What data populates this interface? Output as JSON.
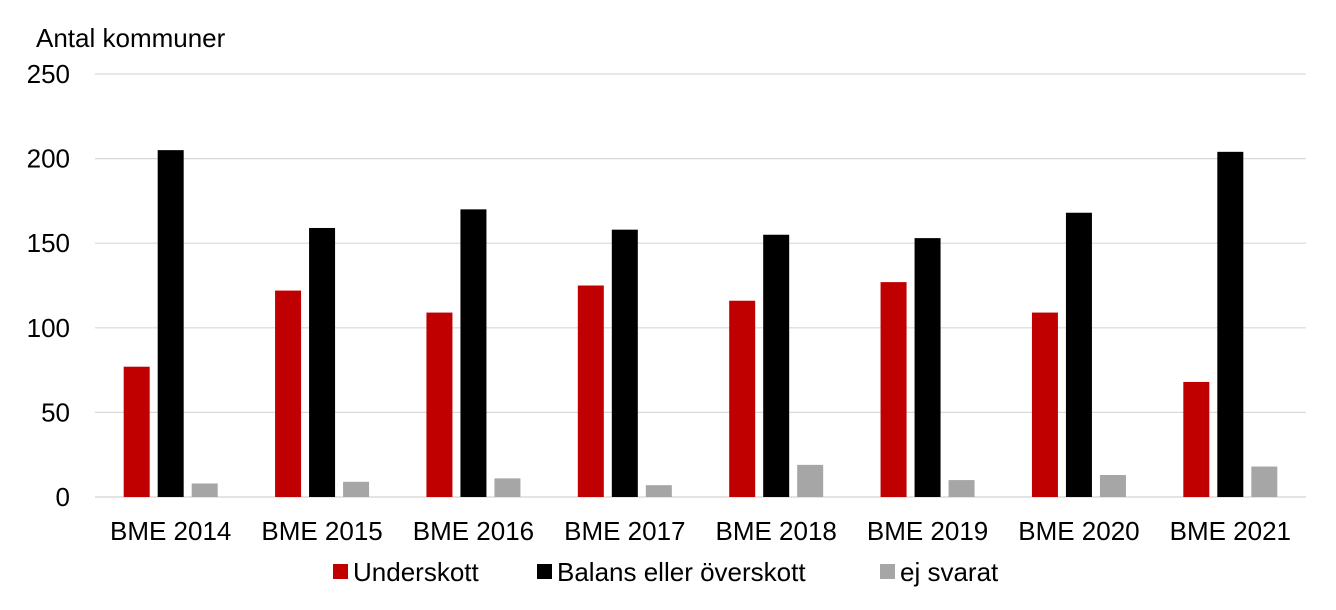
{
  "chart_data": {
    "type": "bar",
    "ylabel": "Antal kommuner",
    "ylim": [
      0,
      250
    ],
    "yticks": [
      0,
      50,
      100,
      150,
      200,
      250
    ],
    "grid": true,
    "legend_position": "bottom",
    "categories": [
      "BME 2014",
      "BME 2015",
      "BME 2016",
      "BME 2017",
      "BME 2018",
      "BME 2019",
      "BME 2020",
      "BME 2021"
    ],
    "series": [
      {
        "name": "Underskott",
        "color": "#c00000",
        "values": [
          77,
          122,
          109,
          125,
          116,
          127,
          109,
          68
        ]
      },
      {
        "name": "Balans eller överskott",
        "color": "#000000",
        "values": [
          205,
          159,
          170,
          158,
          155,
          153,
          168,
          204
        ]
      },
      {
        "name": "ej svarat",
        "color": "#a6a6a6",
        "values": [
          8,
          9,
          11,
          7,
          19,
          10,
          13,
          18
        ]
      }
    ]
  }
}
